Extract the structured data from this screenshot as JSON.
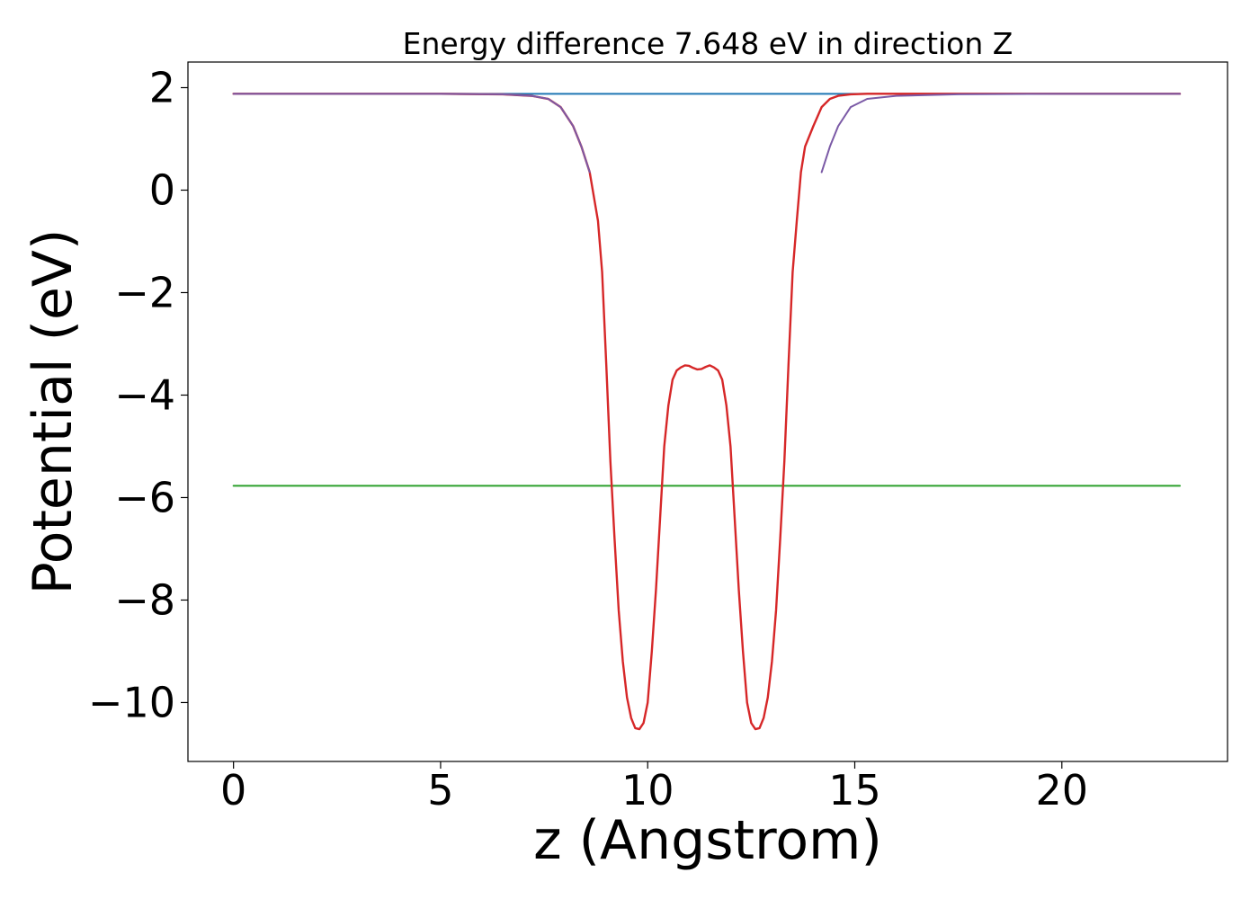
{
  "chart_data": {
    "type": "line",
    "title": "Energy difference 7.648 eV in direction Z",
    "xlabel": "z (Angstrom)",
    "ylabel": "Potential (eV)",
    "xlim": [
      -1.1,
      24.0
    ],
    "ylim": [
      -11.15,
      2.5
    ],
    "xticks": [
      0,
      5,
      10,
      15,
      20
    ],
    "xtick_labels": [
      "0",
      "5",
      "10",
      "15",
      "20"
    ],
    "yticks": [
      2,
      0,
      -2,
      -4,
      -6,
      -8,
      -10
    ],
    "ytick_labels": [
      "2",
      "0",
      "−2",
      "−4",
      "−6",
      "−8",
      "−10"
    ],
    "grid": false,
    "series": [
      {
        "color": "#1f77b4",
        "style": "horizontal",
        "x": [
          0,
          22.85
        ],
        "y": [
          1.88,
          1.88
        ]
      },
      {
        "color": "#2ca02c",
        "style": "horizontal",
        "x": [
          0,
          22.85
        ],
        "y": [
          -5.77,
          -5.77
        ]
      },
      {
        "color": "#d62728",
        "style": "curve",
        "x": [
          0,
          5.0,
          6.5,
          7.2,
          7.6,
          7.9,
          8.2,
          8.4,
          8.6,
          8.8,
          8.9,
          9.0,
          9.1,
          9.2,
          9.3,
          9.4,
          9.5,
          9.6,
          9.7,
          9.8,
          9.9,
          10.0,
          10.1,
          10.2,
          10.3,
          10.4,
          10.5,
          10.6,
          10.7,
          10.8,
          10.9,
          11.0,
          11.1,
          11.2,
          11.3,
          11.4,
          11.5,
          11.6,
          11.7,
          11.8,
          11.9,
          12.0,
          12.1,
          12.2,
          12.3,
          12.4,
          12.5,
          12.6,
          12.7,
          12.8,
          12.9,
          13.0,
          13.1,
          13.2,
          13.3,
          13.4,
          13.5,
          13.6,
          13.7,
          13.8,
          14.0,
          14.2,
          14.4,
          14.6,
          14.9,
          15.3,
          16.0,
          17.5,
          20.0,
          22.85
        ],
        "y": [
          1.88,
          1.88,
          1.87,
          1.84,
          1.78,
          1.62,
          1.25,
          0.85,
          0.35,
          -0.6,
          -1.6,
          -3.4,
          -5.3,
          -6.8,
          -8.2,
          -9.2,
          -9.9,
          -10.3,
          -10.5,
          -10.52,
          -10.4,
          -10.0,
          -9.0,
          -7.8,
          -6.4,
          -5.0,
          -4.2,
          -3.7,
          -3.52,
          -3.46,
          -3.42,
          -3.43,
          -3.47,
          -3.5,
          -3.49,
          -3.45,
          -3.42,
          -3.46,
          -3.52,
          -3.7,
          -4.2,
          -5.0,
          -6.4,
          -7.8,
          -9.0,
          -10.0,
          -10.4,
          -10.52,
          -10.5,
          -10.3,
          -9.9,
          -9.2,
          -8.2,
          -6.8,
          -5.3,
          -3.4,
          -1.6,
          -0.6,
          0.35,
          0.85,
          1.25,
          1.62,
          1.78,
          1.84,
          1.87,
          1.88,
          1.88,
          1.88,
          1.88,
          1.88
        ]
      },
      {
        "color": "#7b5aa6",
        "style": "overlay",
        "x": [
          0,
          5.0,
          6.5,
          7.2,
          7.6,
          7.9,
          8.2,
          8.4,
          8.6
        ],
        "y": [
          1.88,
          1.88,
          1.87,
          1.84,
          1.78,
          1.62,
          1.25,
          0.85,
          0.35
        ]
      },
      {
        "color": "#7b5aa6",
        "style": "overlay",
        "x": [
          14.2,
          14.4,
          14.6,
          14.9,
          15.3,
          16.0,
          17.5,
          20.0,
          22.85
        ],
        "y": [
          0.35,
          0.85,
          1.25,
          1.62,
          1.78,
          1.84,
          1.87,
          1.88,
          1.88
        ]
      }
    ]
  }
}
